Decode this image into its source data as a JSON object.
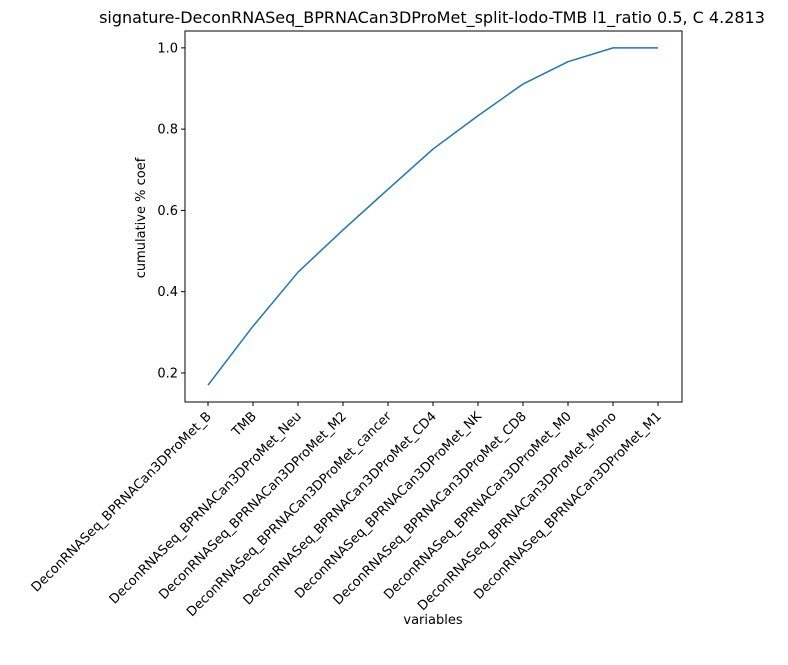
{
  "chart_data": {
    "type": "line",
    "title": "signature-DeconRNASeq_BPRNACan3DProMet_split-lodo-TMB l1_ratio 0.5, C 4.2813",
    "xlabel": "variables",
    "ylabel": "cumulative % coef",
    "categories": [
      "DeconRNASeq_BPRNACan3DProMet_B",
      "TMB",
      "DeconRNASeq_BPRNACan3DProMet_Neu",
      "DeconRNASeq_BPRNACan3DProMet_M2",
      "DeconRNASeq_BPRNACan3DProMet_cancer",
      "DeconRNASeq_BPRNACan3DProMet_CD4",
      "DeconRNASeq_BPRNACan3DProMet_NK",
      "DeconRNASeq_BPRNACan3DProMet_CD8",
      "DeconRNASeq_BPRNACan3DProMet_M0",
      "DeconRNASeq_BPRNACan3DProMet_Mono",
      "DeconRNASeq_BPRNACan3DProMet_M1"
    ],
    "values": [
      0.17,
      0.315,
      0.448,
      0.552,
      0.652,
      0.751,
      0.833,
      0.911,
      0.966,
      1.0,
      1.0
    ],
    "yticks": [
      0.2,
      0.4,
      0.6,
      0.8,
      1.0
    ],
    "ytick_labels": [
      "0.2",
      "0.4",
      "0.6",
      "0.8",
      "1.0"
    ],
    "ylim": [
      0.1285,
      1.0415
    ],
    "line_color": "#1f77b4",
    "grid": false,
    "legend": "none"
  }
}
